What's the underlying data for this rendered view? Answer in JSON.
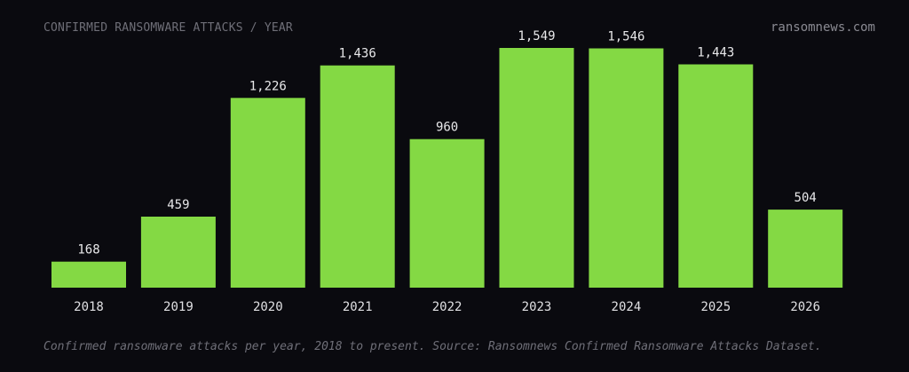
{
  "header": {
    "title": "CONFIRMED RANSOMWARE ATTACKS / YEAR",
    "site": "ransomnews.com"
  },
  "caption": "Confirmed ransomware attacks per year, 2018 to present. Source: Ransomnews Confirmed Ransomware Attacks Dataset.",
  "colors": {
    "background": "#0a0a0f",
    "bar": "#84d944"
  },
  "chart_data": {
    "type": "bar",
    "title": "CONFIRMED RANSOMWARE ATTACKS / YEAR",
    "xlabel": "",
    "ylabel": "",
    "grid": false,
    "categories": [
      "2018",
      "2019",
      "2020",
      "2021",
      "2022",
      "2023",
      "2024",
      "2025",
      "2026"
    ],
    "values": [
      168,
      459,
      1226,
      1436,
      960,
      1549,
      1546,
      1443,
      504
    ],
    "value_labels": [
      "168",
      "459",
      "1,226",
      "1,436",
      "960",
      "1,549",
      "1,546",
      "1,443",
      "504"
    ]
  }
}
